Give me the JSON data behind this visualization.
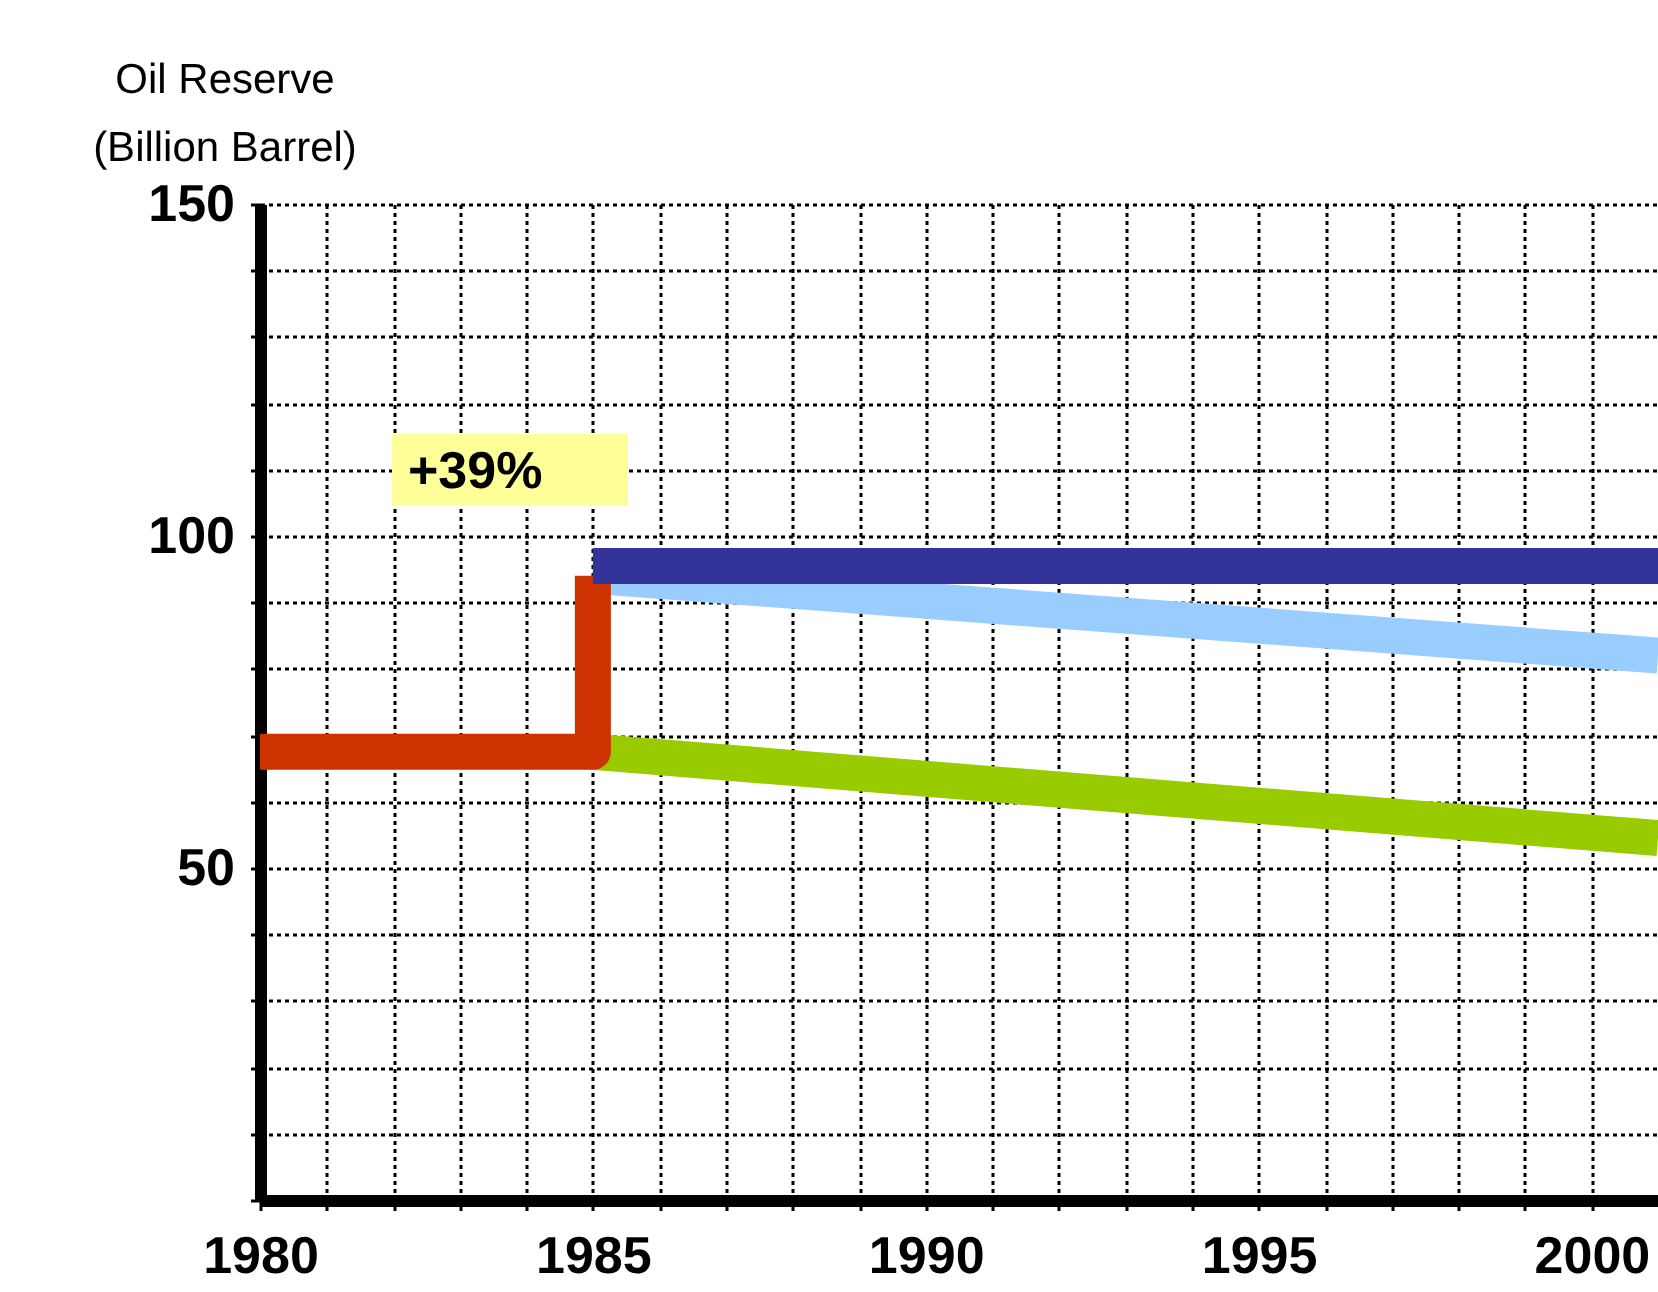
{
  "chart_data": {
    "type": "line",
    "ylabel": "Oil Reserve\n(Billion Barrel)",
    "xlim": [
      1980,
      2001
    ],
    "ylim": [
      0,
      150
    ],
    "xticks": [
      1980,
      {
        "value": 1981,
        "label": null
      },
      {
        "value": 1982,
        "label": null
      },
      {
        "value": 1983,
        "label": null
      },
      {
        "value": 1984,
        "label": null
      },
      1985,
      {
        "value": 1986,
        "label": null
      },
      {
        "value": 1987,
        "label": null
      },
      {
        "value": 1988,
        "label": null
      },
      {
        "value": 1989,
        "label": null
      },
      1990,
      {
        "value": 1991,
        "label": null
      },
      {
        "value": 1992,
        "label": null
      },
      {
        "value": 1993,
        "label": null
      },
      {
        "value": 1994,
        "label": null
      },
      1995,
      {
        "value": 1996,
        "label": null
      },
      {
        "value": 1997,
        "label": null
      },
      {
        "value": 1998,
        "label": null
      },
      {
        "value": 1999,
        "label": null
      },
      2000
    ],
    "yticks": [
      {
        "value": 0,
        "label": null
      },
      {
        "value": 10,
        "label": null
      },
      {
        "value": 20,
        "label": null
      },
      {
        "value": 30,
        "label": null
      },
      {
        "value": 40,
        "label": null
      },
      50,
      {
        "value": 60,
        "label": null
      },
      {
        "value": 70,
        "label": null
      },
      {
        "value": 80,
        "label": null
      },
      {
        "value": 90,
        "label": null
      },
      100,
      {
        "value": 110,
        "label": null
      },
      {
        "value": 120,
        "label": null
      },
      {
        "value": 130,
        "label": null
      },
      {
        "value": 140,
        "label": null
      },
      150
    ],
    "grid": true,
    "line_style": "solid",
    "marker": "none",
    "series": [
      {
        "color": "#99cc00",
        "x": [
          1985,
          2001
        ],
        "values": [
          67.5,
          54.5
        ]
      },
      {
        "color": "#99ccff",
        "x": [
          1985,
          2001
        ],
        "values": [
          94,
          82
        ]
      },
      {
        "color": "#cc3300",
        "x": [
          1980,
          1985,
          1985
        ],
        "values": [
          67.5,
          67.5,
          94
        ]
      },
      {
        "color": "#333399",
        "x": [
          1985,
          2001
        ],
        "values": [
          95.5,
          95.5
        ]
      }
    ],
    "annotations": [
      "+39%"
    ]
  }
}
